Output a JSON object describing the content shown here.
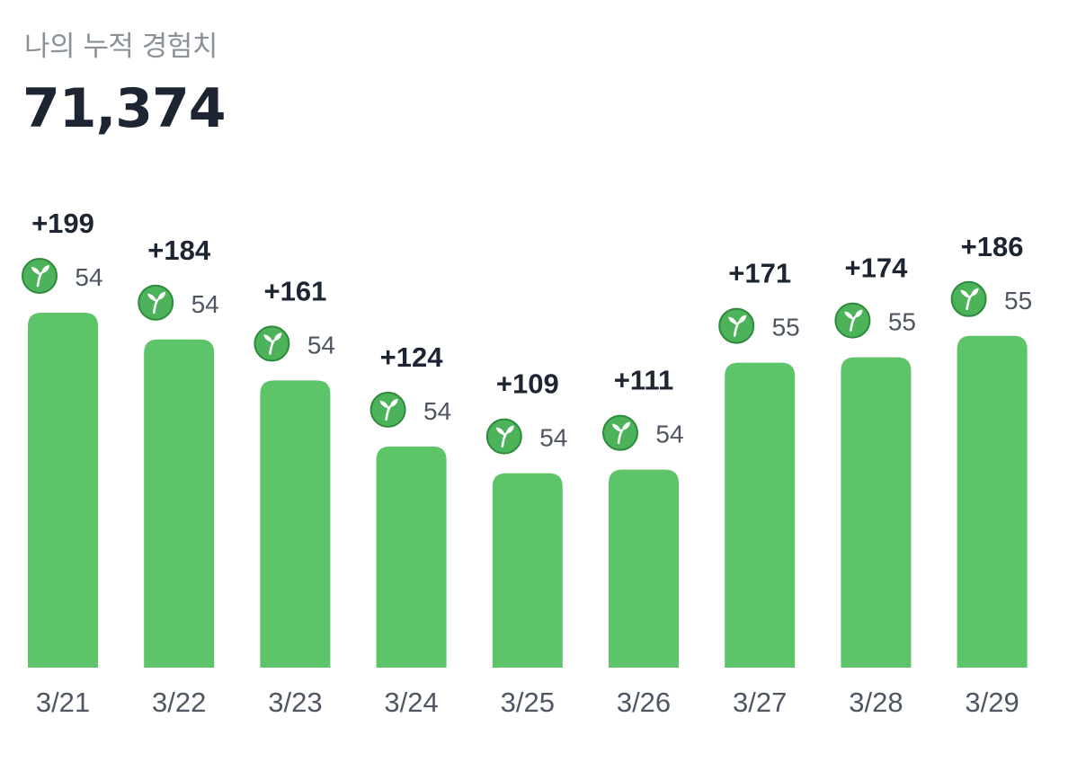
{
  "header": {
    "title": "나의 누적 경험치",
    "total": "71,374"
  },
  "colors": {
    "bar": "#5dc46a",
    "badge_fill": "#4cb35a",
    "badge_stroke": "#2e8a3c",
    "sprout": "#ffffff"
  },
  "icons": {
    "level_badge": "sprout-icon"
  },
  "chart_data": {
    "type": "bar",
    "title": "",
    "xlabel": "",
    "ylabel": "",
    "categories": [
      "3/21",
      "3/22",
      "3/23",
      "3/24",
      "3/25",
      "3/26",
      "3/27",
      "3/28",
      "3/29"
    ],
    "values": [
      199,
      184,
      161,
      124,
      109,
      111,
      171,
      174,
      186
    ],
    "gain_labels": [
      "+199",
      "+184",
      "+161",
      "+124",
      "+109",
      "+111",
      "+171",
      "+174",
      "+186"
    ],
    "levels": [
      "54",
      "54",
      "54",
      "54",
      "54",
      "54",
      "55",
      "55",
      "55"
    ],
    "ylim": [
      0,
      199
    ],
    "grid": false,
    "legend": "none"
  }
}
